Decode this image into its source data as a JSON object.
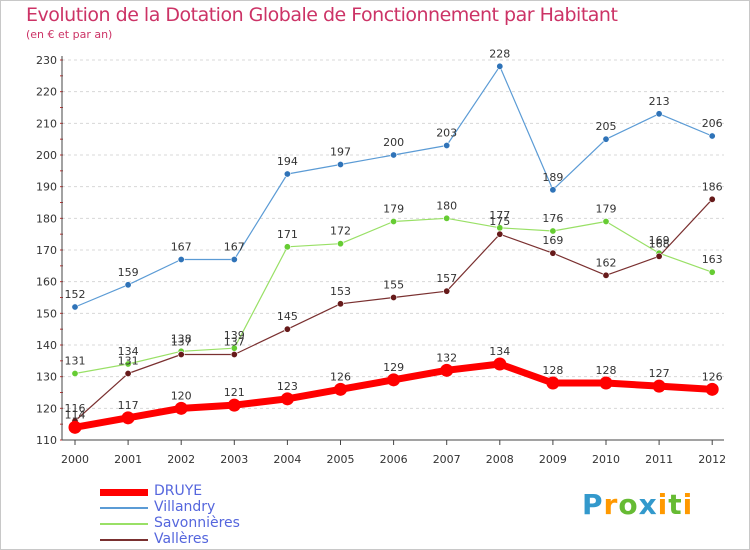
{
  "header": {
    "title": "Evolution de la Dotation Globale de Fonctionnement par Habitant",
    "subtitle": "(en € et par an)"
  },
  "chart_data": {
    "type": "line",
    "categories": [
      "2000",
      "2001",
      "2002",
      "2003",
      "2004",
      "2005",
      "2006",
      "2007",
      "2008",
      "2009",
      "2010",
      "2011",
      "2012"
    ],
    "ylim": [
      110,
      230
    ],
    "yticks": [
      110,
      120,
      130,
      140,
      150,
      160,
      170,
      180,
      190,
      200,
      210,
      220,
      230
    ],
    "grid": "horizontal dashed",
    "legend_position": "bottom-left",
    "series": [
      {
        "name": "Villandry",
        "color": "#5b9bd5",
        "marker": "#2f73b8",
        "width": 1.2,
        "values": [
          152,
          159,
          167,
          167,
          194,
          197,
          200,
          203,
          228,
          189,
          205,
          213,
          206
        ]
      },
      {
        "name": "Savonnières",
        "color": "#99e066",
        "marker": "#66cc33",
        "width": 1.2,
        "values": [
          131,
          134,
          138,
          139,
          171,
          172,
          179,
          180,
          177,
          176,
          179,
          169,
          163
        ]
      },
      {
        "name": "Vallères",
        "color": "#7a3030",
        "marker": "#661a1a",
        "width": 1.2,
        "values": [
          116,
          131,
          137,
          137,
          145,
          153,
          155,
          157,
          175,
          169,
          162,
          168,
          186
        ]
      },
      {
        "name": "DRUYE",
        "color": "#ff0000",
        "marker": "#ff0000",
        "width": 7,
        "values": [
          114,
          117,
          120,
          121,
          123,
          126,
          129,
          132,
          134,
          128,
          128,
          127,
          126
        ]
      }
    ],
    "data_label_texts": {
      "Villandry": [
        "152",
        "159",
        "167",
        "167",
        "194",
        "197",
        "200",
        "203",
        "228",
        "189",
        "205",
        "213",
        "206"
      ],
      "Savonnières": [
        "131",
        "134",
        "138",
        "139",
        "171",
        "172",
        "179",
        "180",
        "177",
        "176",
        "179",
        "169",
        "163"
      ],
      "Vallères": [
        "116",
        "131",
        "137",
        "137",
        "145",
        "153",
        "155",
        "157",
        "175",
        "169",
        "162",
        "168",
        "186"
      ],
      "DRUYE": [
        "114",
        "117",
        "120",
        "121",
        "123",
        "126",
        "129",
        "132",
        "134",
        "128",
        "128",
        "127",
        "126"
      ]
    }
  },
  "legend": {
    "items": [
      {
        "label": "DRUYE",
        "color": "#ff0000",
        "thickness": 7
      },
      {
        "label": "Villandry",
        "color": "#5b9bd5",
        "thickness": 1.5
      },
      {
        "label": "Savonnières",
        "color": "#99e066",
        "thickness": 1.5
      },
      {
        "label": "Vallères",
        "color": "#7a3030",
        "thickness": 1.5
      }
    ]
  },
  "brand": {
    "letters": [
      "P",
      "r",
      "o",
      "x",
      "i",
      "t",
      "i"
    ],
    "colors": [
      "#3399cc",
      "#ff9900",
      "#66bb33",
      "#3399cc",
      "#ff9900",
      "#66bb33",
      "#ff9900"
    ]
  }
}
